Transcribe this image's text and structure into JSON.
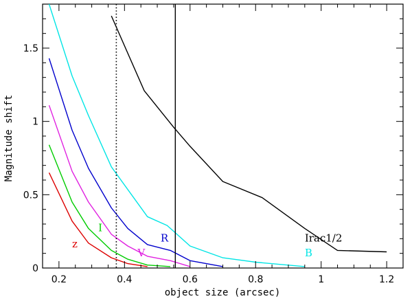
{
  "chart_data": {
    "type": "line",
    "title": "",
    "xlabel": "object size (arcsec)",
    "ylabel": "Magnitude shift",
    "xlim": [
      0.15,
      1.25
    ],
    "ylim": [
      0,
      1.8
    ],
    "xticks": [
      0.2,
      0.4,
      0.6,
      0.8,
      1.0,
      1.2
    ],
    "xtick_labels": [
      "0.2",
      "0.4",
      "0.6",
      "0.8",
      "1",
      "1.2"
    ],
    "yticks": [
      0,
      0.5,
      1.0,
      1.5
    ],
    "ytick_labels": [
      "0",
      "0.5",
      "1",
      "1.5"
    ],
    "grid": false,
    "series": [
      {
        "name": "B",
        "color": "#00e5e5",
        "label": "B",
        "label_at": [
          0.95,
          0.08
        ],
        "points": [
          [
            0.17,
            1.8
          ],
          [
            0.24,
            1.31
          ],
          [
            0.29,
            1.04
          ],
          [
            0.36,
            0.69
          ],
          [
            0.47,
            0.35
          ],
          [
            0.53,
            0.29
          ],
          [
            0.6,
            0.15
          ],
          [
            0.7,
            0.07
          ],
          [
            0.8,
            0.04
          ],
          [
            0.95,
            0.01
          ]
        ]
      },
      {
        "name": "R",
        "color": "#0000cc",
        "label": "R",
        "label_at": [
          0.51,
          0.18
        ],
        "points": [
          [
            0.17,
            1.43
          ],
          [
            0.24,
            0.94
          ],
          [
            0.29,
            0.68
          ],
          [
            0.36,
            0.41
          ],
          [
            0.41,
            0.27
          ],
          [
            0.47,
            0.16
          ],
          [
            0.54,
            0.12
          ],
          [
            0.6,
            0.05
          ],
          [
            0.7,
            0.01
          ]
        ]
      },
      {
        "name": "V",
        "color": "#e020e0",
        "label": "V",
        "label_at": [
          0.44,
          0.08
        ],
        "points": [
          [
            0.17,
            1.11
          ],
          [
            0.24,
            0.66
          ],
          [
            0.29,
            0.45
          ],
          [
            0.36,
            0.23
          ],
          [
            0.41,
            0.15
          ],
          [
            0.47,
            0.08
          ],
          [
            0.54,
            0.05
          ],
          [
            0.6,
            0.01
          ]
        ]
      },
      {
        "name": "I",
        "color": "#00cc00",
        "label": "I",
        "label_at": [
          0.32,
          0.25
        ],
        "points": [
          [
            0.17,
            0.84
          ],
          [
            0.24,
            0.45
          ],
          [
            0.29,
            0.27
          ],
          [
            0.36,
            0.12
          ],
          [
            0.41,
            0.06
          ],
          [
            0.47,
            0.02
          ],
          [
            0.54,
            0.01
          ]
        ]
      },
      {
        "name": "z",
        "color": "#dd0000",
        "label": "z",
        "label_at": [
          0.24,
          0.14
        ],
        "points": [
          [
            0.17,
            0.65
          ],
          [
            0.24,
            0.32
          ],
          [
            0.29,
            0.17
          ],
          [
            0.36,
            0.07
          ],
          [
            0.41,
            0.03
          ],
          [
            0.47,
            0.01
          ]
        ]
      },
      {
        "name": "Irac1/2",
        "color": "#000000",
        "label": "Irac1/2",
        "label_at": [
          0.95,
          0.18
        ],
        "points": [
          [
            0.36,
            1.72
          ],
          [
            0.46,
            1.21
          ],
          [
            0.55,
            0.96
          ],
          [
            0.6,
            0.83
          ],
          [
            0.7,
            0.59
          ],
          [
            0.82,
            0.48
          ],
          [
            0.95,
            0.27
          ],
          [
            1.05,
            0.12
          ],
          [
            1.2,
            0.11
          ]
        ]
      }
    ],
    "vertical_lines": [
      {
        "name": "dotted-line",
        "x": 0.375,
        "style": "dotted",
        "color": "#000000"
      },
      {
        "name": "solid-line",
        "x": 0.555,
        "style": "solid",
        "color": "#000000"
      }
    ]
  }
}
